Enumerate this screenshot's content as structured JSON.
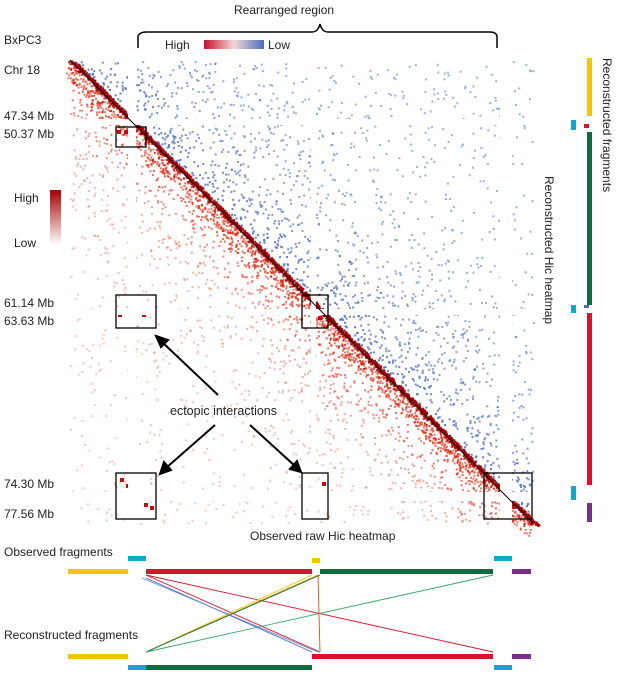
{
  "cell_line": "BxPC3",
  "chromosome": "Chr 18",
  "rearranged_region_label": "Rearranged  region",
  "top_legend": {
    "high": "High",
    "low": "Low",
    "high_color": "#c8102e",
    "low_color": "#4a6fbf"
  },
  "left_legend": {
    "high": "High",
    "low": "Low",
    "high_color": "#b30000",
    "low_color": "#ffffff"
  },
  "positions": [
    "47.34 Mb",
    "50.37 Mb",
    "61.14 Mb",
    "63.63 Mb",
    "74.30 Mb",
    "77.56 Mb"
  ],
  "annotation": "ectopic interactions",
  "observed_heatmap_label": "Observed raw Hic heatmap",
  "reconstructed_heatmap_label": "Reconstructed Hic heatmap",
  "right_axis_label": "Reconstructed fragments",
  "observed_fragments_label": "Observed fragments",
  "reconstructed_fragments_label": "Reconstructed fragments",
  "colors": {
    "yellow": "#f2c500",
    "cyan": "#16a6c9",
    "red": "#d6142c",
    "green": "#0e6b3e",
    "purple": "#7b2d8e",
    "observed": "#d81e05",
    "reconstructed": "#4f6fc0"
  }
}
